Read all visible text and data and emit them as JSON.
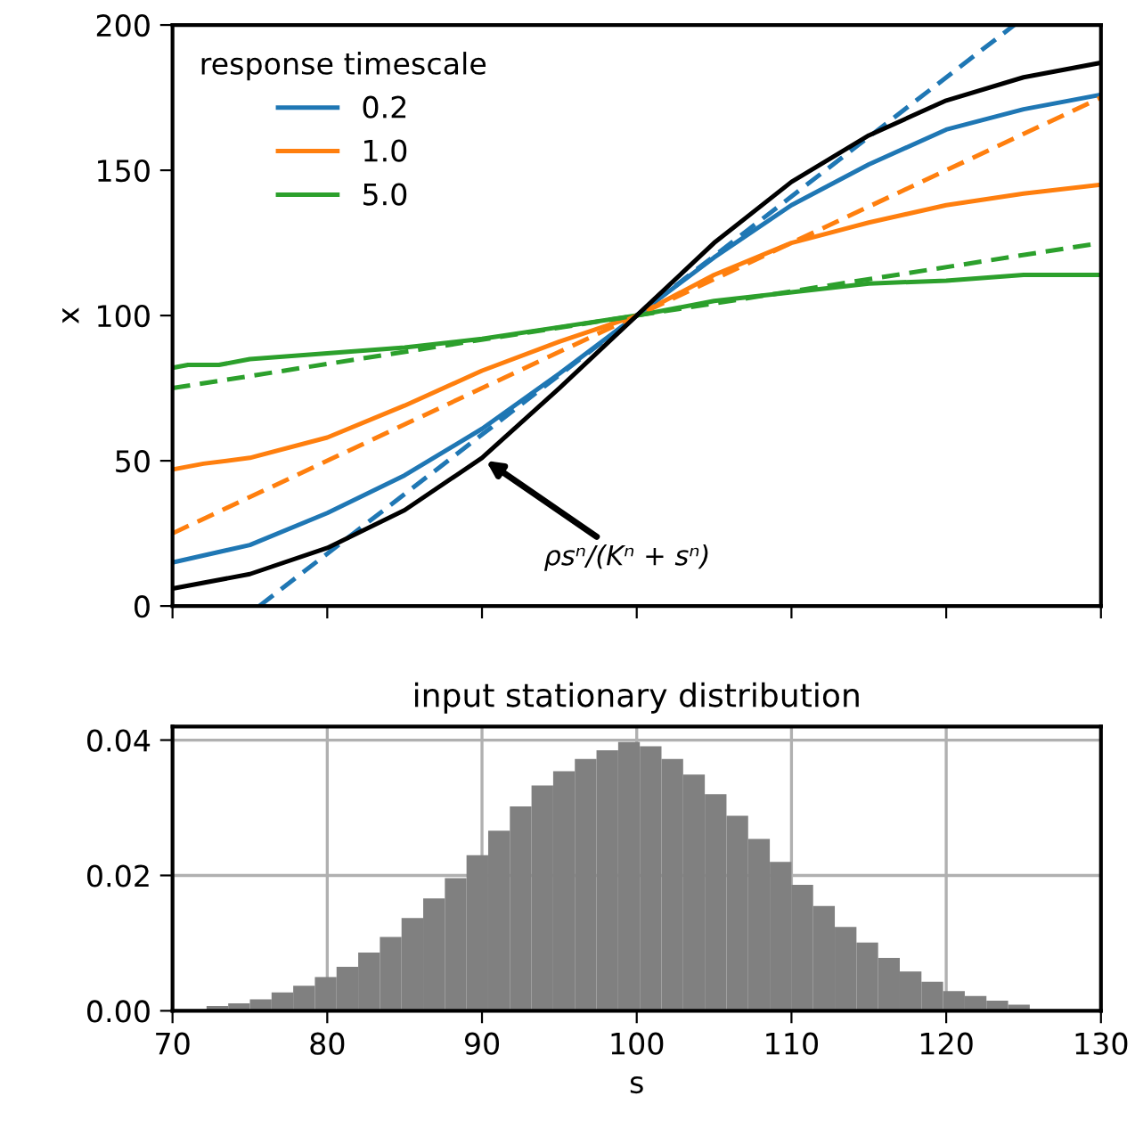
{
  "chart_data": [
    {
      "type": "line",
      "ylabel": "x",
      "xlim": [
        70,
        130
      ],
      "ylim": [
        0,
        200
      ],
      "xticks": [
        70,
        80,
        90,
        100,
        110,
        120,
        130
      ],
      "yticks": [
        0,
        50,
        100,
        150,
        200
      ],
      "tick_labels": "y",
      "grid": false,
      "legend": "top left",
      "legend_title": "response timescale",
      "series": [
        {
          "name": "0.2",
          "color": "#1f77b4",
          "line_style": "solid",
          "x": [
            70,
            75,
            80,
            85,
            90,
            95,
            100,
            105,
            110,
            115,
            120,
            125,
            130
          ],
          "values": [
            15,
            21,
            32,
            45,
            61,
            80,
            100,
            120,
            138,
            152,
            164,
            171,
            176
          ]
        },
        {
          "name": "1.0",
          "color": "#ff7f0e",
          "line_style": "solid",
          "x": [
            70,
            72,
            75,
            80,
            85,
            90,
            95,
            100,
            105,
            110,
            115,
            120,
            125,
            130
          ],
          "values": [
            47,
            49,
            51,
            58,
            69,
            81,
            91,
            100,
            114,
            125,
            132,
            138,
            142,
            145
          ]
        },
        {
          "name": "5.0",
          "color": "#2ca02c",
          "line_style": "solid",
          "x": [
            70,
            71,
            73,
            75,
            80,
            85,
            90,
            95,
            100,
            105,
            110,
            115,
            120,
            125,
            130
          ],
          "values": [
            82,
            83,
            83,
            85,
            87,
            89,
            92,
            96,
            100,
            105,
            108,
            111,
            112,
            114,
            114
          ]
        },
        {
          "color": "#1f77b4",
          "line_style": "dashed",
          "x": [
            75.6,
            124.4
          ],
          "values": [
            0,
            200
          ]
        },
        {
          "color": "#ff7f0e",
          "line_style": "dashed",
          "x": [
            70,
            130
          ],
          "values": [
            25,
            175
          ]
        },
        {
          "color": "#2ca02c",
          "line_style": "dashed",
          "x": [
            70,
            130
          ],
          "values": [
            75,
            125
          ]
        },
        {
          "color": "#000000",
          "line_style": "solid",
          "x": [
            70,
            75,
            80,
            85,
            90,
            95,
            100,
            105,
            110,
            115,
            120,
            125,
            130
          ],
          "values": [
            6,
            11,
            20,
            33,
            51,
            75,
            100,
            125,
            146,
            162,
            174,
            182,
            187
          ]
        }
      ],
      "annotations": [
        {
          "text": "ρsⁿ/(Kⁿ + sⁿ)",
          "x": 90,
          "y": 51
        }
      ]
    },
    {
      "type": "histogram",
      "title": "input stationary distribution",
      "xlabel": "s",
      "color": "#808080",
      "xlim": [
        70,
        130
      ],
      "ylim": [
        0,
        0.042
      ],
      "xticks": [
        70,
        80,
        90,
        100,
        110,
        120,
        130
      ],
      "yticks": [
        {
          "value": 0,
          "label": "0.00"
        },
        {
          "value": 0.02,
          "label": "0.02"
        },
        {
          "value": 0.04,
          "label": "0.04"
        }
      ],
      "grid": true,
      "bins": [
        69.4,
        70.8,
        72.2,
        73.6,
        75.0,
        76.4,
        77.8,
        79.2,
        80.6,
        82.0,
        83.4,
        84.8,
        86.2,
        87.6,
        89.0,
        90.4,
        91.8,
        93.2,
        94.6,
        96.0,
        97.4,
        98.8,
        100.2,
        101.6,
        103.0,
        104.4,
        105.8,
        107.2,
        108.6,
        110.0,
        111.4,
        112.8,
        114.2,
        115.6,
        117.0,
        118.4,
        119.8,
        121.2,
        122.6,
        124.0,
        125.4,
        126.8,
        128.2,
        129.6,
        131.0
      ],
      "values": [
        null,
        null,
        0.0007,
        0.0011,
        0.0017,
        0.0027,
        0.0037,
        0.005,
        0.0065,
        0.0086,
        0.0109,
        0.0137,
        0.0166,
        0.0196,
        0.023,
        0.0266,
        0.0302,
        0.0333,
        0.0354,
        0.0372,
        0.0385,
        0.0397,
        0.0391,
        0.0372,
        0.0349,
        0.032,
        0.0288,
        0.0254,
        0.022,
        0.0186,
        0.0155,
        0.0124,
        0.0101,
        0.0078,
        0.0058,
        0.0043,
        0.0029,
        0.0022,
        0.0015,
        0.0009,
        null,
        null,
        null,
        0.0001
      ]
    }
  ]
}
